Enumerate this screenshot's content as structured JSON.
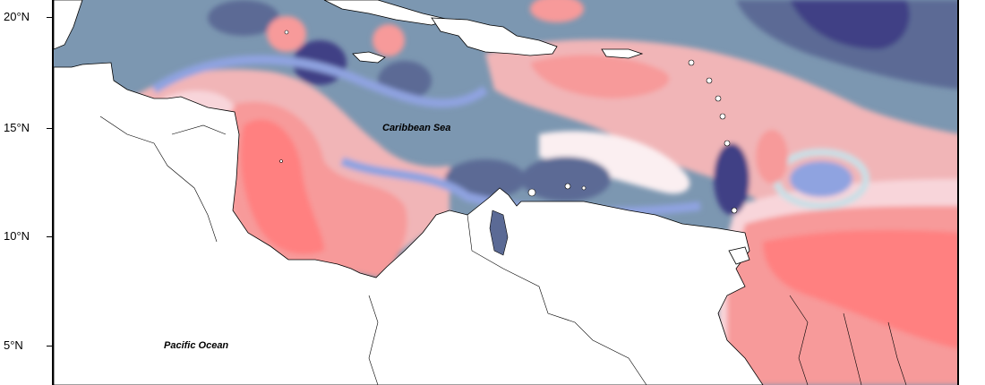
{
  "map": {
    "latitude_labels": [
      "20°N",
      "15°N",
      "10°N",
      "5°N"
    ],
    "place_labels": {
      "caribbean_sea": "Caribbean Sea",
      "pacific_ocean": "Pacific Ocean"
    },
    "palette": {
      "deep_navy": "#403f85",
      "slate_blue": "#5b6a95",
      "steel_blue": "#7c97b1",
      "periwinkle": "#8fa3e0",
      "pale_blue": "#c9dfe6",
      "near_white": "#fbeff1",
      "pale_pink": "#f8d5da",
      "light_pink": "#f1b5b7",
      "salmon": "#f79a9a",
      "coral": "#ff7f7f",
      "land": "#ffffff",
      "coastline": "#000000"
    }
  }
}
